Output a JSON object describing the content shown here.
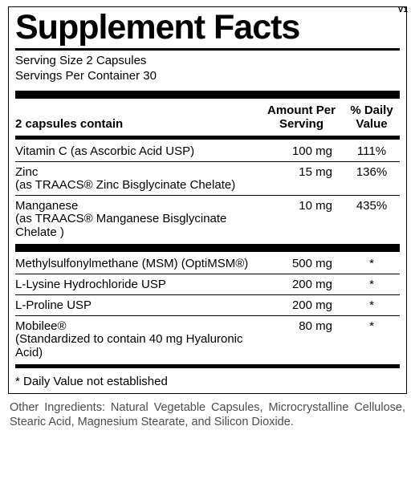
{
  "version": "V1",
  "title": "Supplement Facts",
  "serving_size_label": "Serving Size 2 Capsules",
  "servings_per_container_label": "Servings Per Container 30",
  "columns": {
    "name": "2 capsules contain",
    "amount": "Amount Per Serving",
    "dv": "% Daily Value"
  },
  "group1": [
    {
      "name": "Vitamin C (as Ascorbic Acid USP)",
      "sub": "",
      "amount": "100 mg",
      "dv": "111%"
    },
    {
      "name": "Zinc",
      "sub": "(as TRAACS® Zinc Bisglycinate Chelate)",
      "amount": "15 mg",
      "dv": "136%"
    },
    {
      "name": "Manganese",
      "sub": "(as TRAACS® Manganese Bisglycinate Chelate )",
      "amount": "10 mg",
      "dv": "435%"
    }
  ],
  "group2": [
    {
      "name": "Methylsulfonylmethane (MSM) (OptiMSM®)",
      "sub": "",
      "amount": "500 mg",
      "dv": "*"
    },
    {
      "name": "L-Lysine Hydrochloride USP",
      "sub": "",
      "amount": "200 mg",
      "dv": "*"
    },
    {
      "name": "L-Proline USP",
      "sub": "",
      "amount": "200 mg",
      "dv": "*"
    },
    {
      "name": "Mobilee®",
      "sub": "(Standardized to contain 40 mg Hyaluronic Acid)",
      "amount": "80 mg",
      "dv": "*"
    }
  ],
  "dv_footnote": "* Daily Value not established",
  "other_ingredients": "Other Ingredients: Natural Vegetable Capsules, Microcrystalline Cellulose, Stearic Acid, Magnesium Stearate,  and Silicon Dioxide."
}
